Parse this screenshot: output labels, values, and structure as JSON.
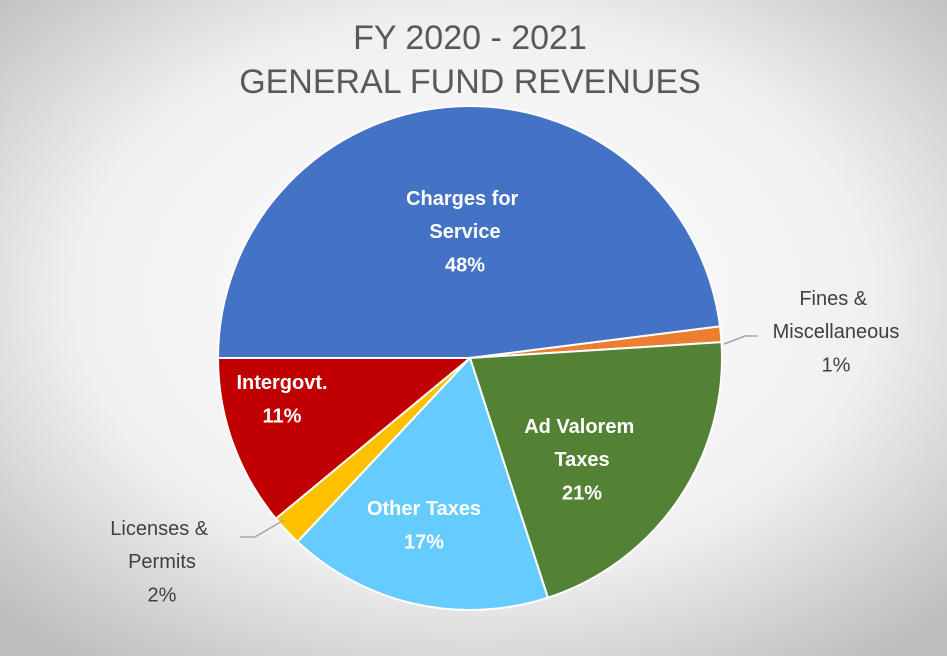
{
  "chart_data": {
    "type": "pie",
    "title": [
      "FY 2020 - 2021",
      "GENERAL FUND REVENUES"
    ],
    "categories": [
      "Charges for Service",
      "Fines & Miscellaneous",
      "Ad Valorem Taxes",
      "Other Taxes",
      "Licenses & Permits",
      "Intergovt."
    ],
    "values": [
      48,
      1,
      21,
      17,
      2,
      11
    ],
    "value_labels": [
      "48%",
      "1%",
      "21%",
      "17%",
      "2%",
      "11%"
    ],
    "colors": [
      "#4472c4",
      "#ed7d31",
      "#548235",
      "#66ccff",
      "#ffc000",
      "#c00000"
    ]
  }
}
